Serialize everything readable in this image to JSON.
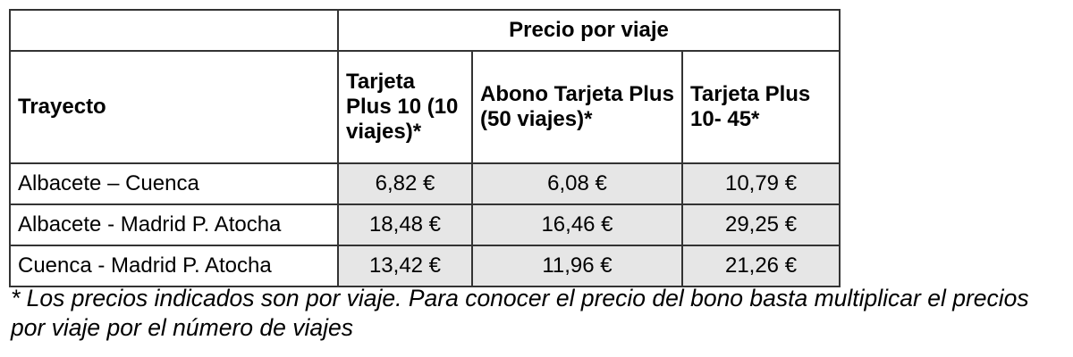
{
  "table": {
    "group_header": "Precio por viaje",
    "columns": [
      "Trayecto",
      "Tarjeta Plus 10 (10 viajes)*",
      "Abono Tarjeta Plus (50 viajes)*",
      "Tarjeta Plus 10- 45*"
    ],
    "rows": [
      [
        "Albacete – Cuenca",
        "6,82 €",
        "6,08 €",
        "10,79 €"
      ],
      [
        "Albacete - Madrid P. Atocha",
        "18,48 €",
        "16,46 €",
        "29,25 €"
      ],
      [
        "Cuenca - Madrid P. Atocha",
        "13,42 €",
        "11,96 €",
        "21,26 €"
      ]
    ]
  },
  "footnote": "* Los precios indicados son por viaje. Para conocer el precio del bono basta multiplicar el precios por viaje por el número de viajes"
}
